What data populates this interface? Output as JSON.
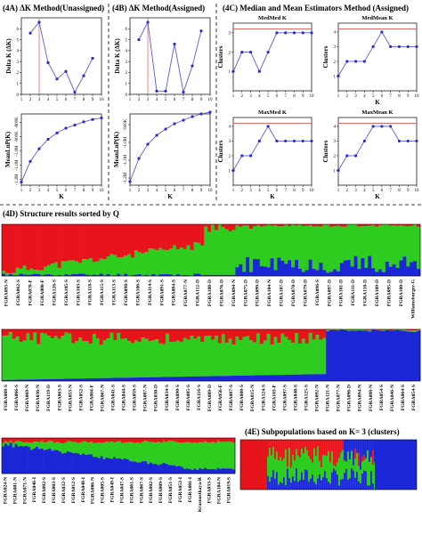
{
  "panels": {
    "a": {
      "title": "(4A) ΔK Method(Unassigned)"
    },
    "b": {
      "title": "(4B) ΔK Method(Assigned)"
    },
    "c": {
      "title": "(4C) Median and Mean Estimators Method (Assigned)"
    },
    "d": {
      "title": "(4D) Structure results sorted by Q"
    },
    "e": {
      "title": "(4E) Subpopulations based on K= 3 (clusters)"
    }
  },
  "colors": {
    "red": "#e8141b",
    "green": "#2ecc1f",
    "blue": "#1b27d6",
    "line": "#5b5be0",
    "refline": "#e05555"
  },
  "chart_data": [
    {
      "id": "4A-top",
      "type": "line",
      "ylabel": "Delta K (ΔK)",
      "x": [
        2,
        3,
        4,
        5,
        6,
        7,
        8,
        9
      ],
      "y": [
        5.6,
        6.6,
        2.9,
        1.4,
        2.1,
        0.2,
        1.7,
        3.3
      ],
      "xlim": [
        1,
        10
      ],
      "ylim": [
        0,
        7
      ],
      "yticks": [
        0,
        1,
        2,
        3,
        4,
        5,
        6
      ],
      "xticks": [
        1,
        2,
        3,
        4,
        5,
        6,
        7,
        8,
        9,
        10
      ],
      "vline": 3
    },
    {
      "id": "4A-bottom",
      "type": "line",
      "xlabel": "K",
      "ylabel": "MeanLnP(K)",
      "x": [
        1,
        2,
        3,
        4,
        5,
        6,
        7,
        8,
        9,
        10
      ],
      "y": [
        -1230000,
        -1100000,
        -1020000,
        -960000,
        -920000,
        -890000,
        -870000,
        -850000,
        -835000,
        -825000
      ],
      "xlim": [
        1,
        10
      ],
      "ylim": [
        -1250000,
        -800000
      ],
      "yticklabels": [
        "-1.2M",
        "-1.1M",
        "-1.0M",
        "-900K",
        "-800K"
      ],
      "xticks": [
        1,
        2,
        3,
        4,
        5,
        6,
        7,
        8,
        9,
        10
      ]
    },
    {
      "id": "4B-top",
      "type": "line",
      "ylabel": "Delta K (ΔK)",
      "x": [
        2,
        3,
        4,
        5,
        6,
        7,
        8,
        9
      ],
      "y": [
        5.0,
        6.6,
        0.3,
        0.3,
        4.6,
        0.2,
        2.6,
        5.8
      ],
      "xlim": [
        1,
        10
      ],
      "ylim": [
        0,
        7
      ],
      "yticks": [
        0,
        1,
        2,
        3,
        4,
        5,
        6
      ],
      "xticks": [
        1,
        2,
        3,
        4,
        5,
        6,
        7,
        8,
        9,
        10
      ],
      "vline": 3
    },
    {
      "id": "4B-bottom",
      "type": "line",
      "xlabel": "K",
      "ylabel": "MeanLnP(K)",
      "x": [
        1,
        2,
        3,
        4,
        5,
        6,
        7,
        8,
        9,
        10
      ],
      "y": [
        -1230000,
        -1100000,
        -1020000,
        -970000,
        -935000,
        -905000,
        -885000,
        -865000,
        -850000,
        -840000
      ],
      "xlim": [
        1,
        10
      ],
      "ylim": [
        -1250000,
        -850000
      ],
      "yticklabels": [
        "-1.2M",
        "-1.1M",
        "-1.0M",
        "-900K"
      ],
      "xticks": [
        1,
        2,
        3,
        4,
        5,
        6,
        7,
        8,
        9,
        10
      ]
    },
    {
      "id": "MedMed",
      "type": "line",
      "title": "MedMed K",
      "ylabel": "Clusters",
      "x": [
        1,
        2,
        3,
        4,
        5,
        6,
        7,
        8,
        9,
        10
      ],
      "y": [
        1,
        2,
        2,
        1,
        2,
        3,
        3,
        3,
        3,
        3
      ],
      "xlim": [
        1,
        10
      ],
      "ylim": [
        0,
        3.5
      ],
      "yticks": [
        1,
        2,
        3
      ],
      "xticks": [
        1,
        2,
        3,
        4,
        5,
        6,
        7,
        8,
        9,
        10
      ],
      "hline": 3.2
    },
    {
      "id": "MedMean",
      "type": "line",
      "title": "MedMean K",
      "xlabel": "K",
      "ylabel": "Clusters",
      "x": [
        1,
        2,
        3,
        4,
        5,
        6,
        7,
        8,
        9,
        10
      ],
      "y": [
        1,
        2,
        2,
        2,
        3,
        4,
        3,
        3,
        3,
        3
      ],
      "xlim": [
        1,
        10
      ],
      "ylim": [
        0,
        4.6
      ],
      "yticks": [
        1,
        2,
        3,
        4
      ],
      "xticks": [
        1,
        2,
        3,
        4,
        5,
        6,
        7,
        8,
        9,
        10
      ],
      "hline": 4.2
    },
    {
      "id": "MaxMed",
      "type": "line",
      "title": "MaxMed K",
      "xlabel": "K",
      "ylabel": "Clusters",
      "x": [
        1,
        2,
        3,
        4,
        5,
        6,
        7,
        8,
        9,
        10
      ],
      "y": [
        1,
        2,
        2,
        3,
        4,
        3,
        3,
        3,
        3,
        3
      ],
      "xlim": [
        1,
        10
      ],
      "ylim": [
        0,
        4.6
      ],
      "yticks": [
        1,
        2,
        3,
        4
      ],
      "xticks": [
        1,
        2,
        3,
        4,
        5,
        6,
        7,
        8,
        9,
        10
      ],
      "hline": 4.2
    },
    {
      "id": "MaxMean",
      "type": "line",
      "title": "MaxMean K",
      "xlabel": "K",
      "ylabel": "Clusters",
      "x": [
        1,
        2,
        3,
        4,
        5,
        6,
        7,
        8,
        9,
        10
      ],
      "y": [
        1,
        2,
        2,
        3,
        4,
        4,
        4,
        3,
        3,
        3
      ],
      "xlim": [
        1,
        10
      ],
      "ylim": [
        0,
        4.6
      ],
      "yticks": [
        1,
        2,
        3,
        4
      ],
      "xticks": [
        1,
        2,
        3,
        4,
        5,
        6,
        7,
        8,
        9,
        10
      ],
      "hline": 4.2
    }
  ],
  "structure_rows": [
    {
      "labels": [
        "FGRA093-N",
        "FGRA062-S",
        "FGRA078-F",
        "FGRA080-F",
        "FGRA126-S",
        "FGRA105-S",
        "FGRA103-S",
        "FGRA118-S",
        "FGRA115-S",
        "FGRA113-S",
        "FGRA098-S",
        "FGRA106-S",
        "FGRA114-S",
        "FGRA091-S",
        "FGRA084-S",
        "FGRA077-N",
        "FGRA112-D",
        "FGRA108-D",
        "FGRA076-D",
        "FGRA094-N",
        "FGRA075-D",
        "FGRA099-D",
        "FGRA104-N",
        "FGRA107-D",
        "FGRA070-D",
        "FGRA079-D",
        "FGRA096-S",
        "FGRA097-D",
        "FGRA101-D",
        "FGRA111-D",
        "FGRA110-D",
        "FGRA109-D",
        "FGRA095-D",
        "FGRA100-D",
        "Williamsburger-G"
      ]
    },
    {
      "labels": [
        "FGRA088-S",
        "FGRA066-S",
        "FGRA069-N",
        "FGRA036-N",
        "FGRA119-D",
        "FGRA063-S",
        "FGRA053-N",
        "FGRA052-S",
        "FGRA064-F",
        "FGRA067-N",
        "FGRA041-S",
        "FGRA044-S",
        "FGRA059-S",
        "FGRA087-N",
        "FGRA030-D",
        "FGRA034-S",
        "FGRA090-S",
        "FGRA085-S",
        "FGRA116-S",
        "FGRA089-D",
        "FGRA056-F",
        "FGRA087-S",
        "FGRA008-S",
        "FGRA015-N",
        "FGRA124-S",
        "FGRA103-F",
        "FGRA097-S",
        "FGRA040-S",
        "FGRA125-S",
        "FGRA092-N",
        "FGRA121-N",
        "FGRA077-N",
        "FGRA096-D",
        "FGRA094-N",
        "FGRA098-N",
        "FGRA054-S",
        "FGRA046-N",
        "FGRA064-S",
        "FGRA054-S"
      ]
    },
    {
      "labels": [
        "FGRA024-N",
        "FGRA081-N",
        "FGRA071-N",
        "FGRA046-I",
        "FGRA082-S",
        "FGRA003-S",
        "FGRA032-S",
        "FGRA012-S",
        "FGRA048-I",
        "FGRA006-N",
        "FGRA005-S",
        "FGRA049-I",
        "FGRA047-S",
        "FGRA061-S",
        "FGRA067-S",
        "FGRA002-S",
        "FGRA009-S",
        "FGRA051-S",
        "FGRA053-I",
        "FGRA001-I",
        "Krasnostkaya-R",
        "FGRA033-S",
        "FGRA104-N",
        "FGRA019-S"
      ]
    }
  ]
}
